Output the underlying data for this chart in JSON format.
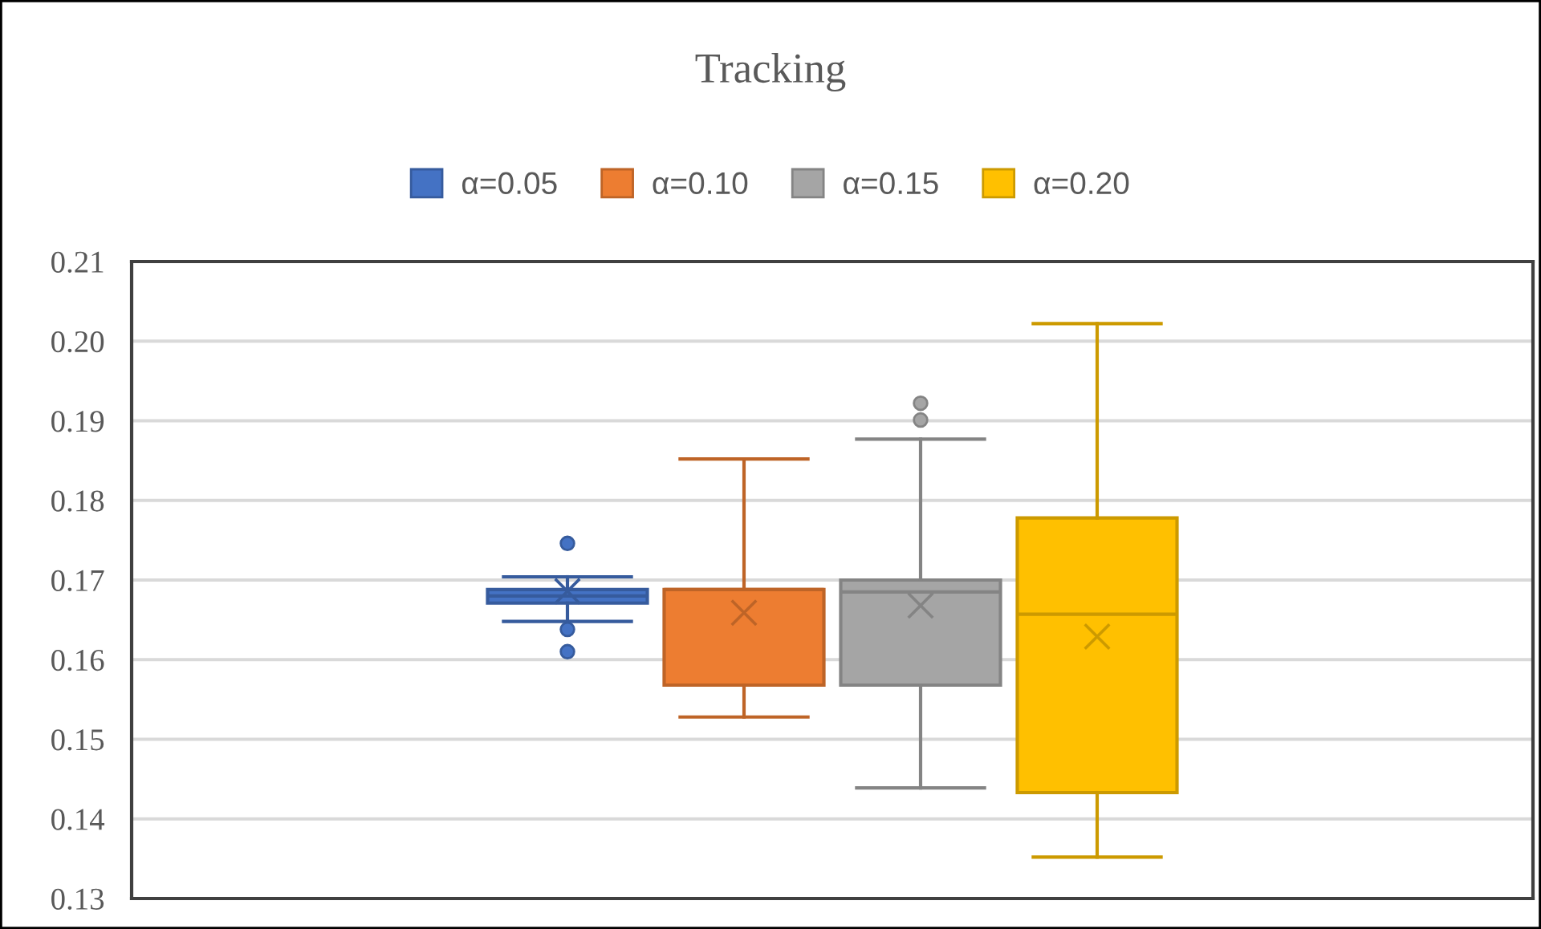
{
  "chart_data": {
    "type": "box",
    "title": "Tracking",
    "categories": [
      null
    ],
    "ylim": [
      0.13,
      0.21
    ],
    "yticks": [
      {
        "value": 0.13,
        "label": "0.13"
      },
      {
        "value": 0.14,
        "label": "0.14"
      },
      {
        "value": 0.15,
        "label": "0.15"
      },
      {
        "value": 0.16,
        "label": "0.16"
      },
      {
        "value": 0.17,
        "label": "0.17"
      },
      {
        "value": 0.18,
        "label": "0.18"
      },
      {
        "value": 0.19,
        "label": "0.19"
      },
      {
        "value": 0.2,
        "label": "0.20"
      },
      {
        "value": 0.21,
        "label": "0.21"
      }
    ],
    "grid": "y",
    "legend": "top",
    "series": [
      {
        "name": "α=0.05",
        "color": "#4472c4",
        "boxes": [
          {
            "low": 0.1648,
            "q1": 0.1671,
            "median": 0.168,
            "q3": 0.1688,
            "high": 0.1704,
            "mean": 0.1686,
            "outliers": [
              0.1746,
              0.1638,
              0.161
            ]
          }
        ]
      },
      {
        "name": "α=0.10",
        "color": "#ed7d31",
        "boxes": [
          {
            "low": 0.1528,
            "q1": 0.1568,
            "median": 0.1688,
            "q3": 0.1688,
            "high": 0.1852,
            "mean": 0.1659
          }
        ]
      },
      {
        "name": "α=0.15",
        "color": "#a5a5a5",
        "boxes": [
          {
            "low": 0.1439,
            "q1": 0.1568,
            "median": 0.1685,
            "q3": 0.17,
            "high": 0.1877,
            "mean": 0.1668,
            "outliers": [
              0.1922,
              0.1901
            ]
          }
        ]
      },
      {
        "name": "α=0.20",
        "color": "#ffc000",
        "boxes": [
          {
            "low": 0.1352,
            "q1": 0.1433,
            "median": 0.1657,
            "q3": 0.1778,
            "high": 0.2022,
            "mean": 0.1629
          }
        ]
      }
    ]
  }
}
